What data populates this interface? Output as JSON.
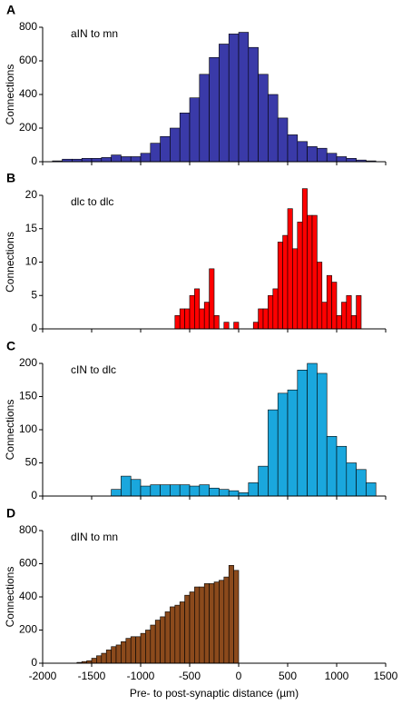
{
  "chart_data": [
    {
      "type": "histogram",
      "panel": "A",
      "annotation": "aIN to mn",
      "ylabel": "Connections",
      "color": "#3a3aa8",
      "bins": [
        -1900,
        -1800,
        -1700,
        -1600,
        -1500,
        -1400,
        -1300,
        -1200,
        -1100,
        -1000,
        -900,
        -800,
        -700,
        -600,
        -500,
        -400,
        -300,
        -200,
        -100,
        0,
        100,
        200,
        300,
        400,
        500,
        600,
        700,
        800,
        900,
        1000,
        1100,
        1200,
        1300,
        1400
      ],
      "values": [
        5,
        15,
        15,
        20,
        20,
        25,
        40,
        30,
        30,
        50,
        110,
        150,
        200,
        290,
        380,
        520,
        620,
        700,
        760,
        770,
        680,
        520,
        400,
        260,
        160,
        120,
        90,
        80,
        50,
        30,
        20,
        10,
        5
      ],
      "xlim": [
        -2000,
        1500
      ],
      "xticks": [
        -2000,
        -1500,
        -1000,
        -500,
        0,
        500,
        1000,
        1500
      ],
      "ylim": [
        0,
        800
      ],
      "yticks": [
        0,
        200,
        400,
        600,
        800
      ]
    },
    {
      "type": "histogram",
      "panel": "B",
      "annotation": "dlc to dlc",
      "ylabel": "Connections",
      "color": "#ff0000",
      "bins": [
        -650,
        -600,
        -550,
        -500,
        -450,
        -400,
        -350,
        -300,
        -250,
        -200,
        -150,
        -100,
        -50,
        0,
        50,
        100,
        150,
        200,
        250,
        300,
        350,
        400,
        450,
        500,
        550,
        600,
        650,
        700,
        750,
        800,
        850,
        900,
        950,
        1000,
        1050,
        1100,
        1150,
        1200,
        1250
      ],
      "values": [
        2,
        3,
        3,
        5,
        6,
        3,
        4,
        9,
        2,
        0,
        1,
        0,
        1,
        0,
        0,
        0,
        1,
        3,
        3,
        5,
        6,
        13,
        14,
        18,
        12,
        16,
        21,
        17,
        17,
        10,
        4,
        8,
        7,
        2,
        4,
        5,
        2,
        5
      ],
      "xlim": [
        -2000,
        1500
      ],
      "xticks": [
        -2000,
        -1500,
        -1000,
        -500,
        0,
        500,
        1000,
        1500
      ],
      "ylim": [
        0,
        20
      ],
      "yticks": [
        0,
        5,
        10,
        15,
        20
      ]
    },
    {
      "type": "histogram",
      "panel": "C",
      "annotation": "cIN to dlc",
      "ylabel": "Connections",
      "color": "#1aa7dd",
      "bins": [
        -1300,
        -1200,
        -1100,
        -1000,
        -900,
        -800,
        -700,
        -600,
        -500,
        -400,
        -300,
        -200,
        -100,
        0,
        100,
        200,
        300,
        400,
        500,
        600,
        700,
        800,
        900,
        1000,
        1100,
        1200,
        1300,
        1400
      ],
      "values": [
        10,
        30,
        25,
        15,
        17,
        17,
        17,
        17,
        15,
        17,
        12,
        10,
        8,
        5,
        20,
        45,
        130,
        155,
        160,
        190,
        200,
        185,
        90,
        75,
        50,
        40,
        20
      ],
      "xlim": [
        -2000,
        1500
      ],
      "xticks": [
        -2000,
        -1500,
        -1000,
        -500,
        0,
        500,
        1000,
        1500
      ],
      "ylim": [
        0,
        200
      ],
      "yticks": [
        0,
        50,
        100,
        150,
        200
      ]
    },
    {
      "type": "histogram",
      "panel": "D",
      "annotation": "dIN to mn",
      "ylabel": "Connections",
      "color": "#8b4a1c",
      "xlabel": "Pre- to post-synaptic distance (µm)",
      "bins": [
        -1650,
        -1600,
        -1550,
        -1500,
        -1450,
        -1400,
        -1350,
        -1300,
        -1250,
        -1200,
        -1150,
        -1100,
        -1050,
        -1000,
        -950,
        -900,
        -850,
        -800,
        -750,
        -700,
        -650,
        -600,
        -550,
        -500,
        -450,
        -400,
        -350,
        -300,
        -250,
        -200,
        -150,
        -100,
        -50,
        0
      ],
      "values": [
        5,
        10,
        15,
        30,
        45,
        60,
        80,
        100,
        110,
        130,
        150,
        160,
        160,
        180,
        200,
        230,
        260,
        280,
        310,
        340,
        350,
        370,
        410,
        430,
        460,
        460,
        480,
        480,
        490,
        500,
        520,
        590,
        560
      ],
      "xlim": [
        -2000,
        1500
      ],
      "xticks": [
        -2000,
        -1500,
        -1000,
        -500,
        0,
        500,
        1000,
        1500
      ],
      "ylim": [
        0,
        800
      ],
      "yticks": [
        0,
        200,
        400,
        600,
        800
      ]
    }
  ]
}
